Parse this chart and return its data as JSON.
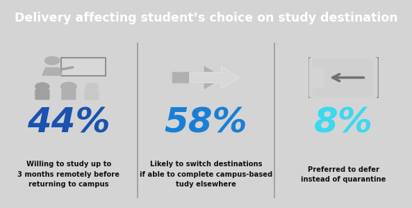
{
  "title": "Delivery affecting student’s choice on study destination",
  "title_bg": "#111111",
  "title_color": "#ffffff",
  "body_bg": "#d4d4d4",
  "divider_color": "#999999",
  "stats": [
    "44%",
    "58%",
    "8%"
  ],
  "stat_colors": [
    "#1a52b0",
    "#1a7fd4",
    "#3dd8f0"
  ],
  "descriptions": [
    "Willing to study up to\n3 months remotely before\nreturning to campus",
    "Likely to switch destinations\nif able to complete campus-based\ntudy elsewhere",
    "Preferred to defer\ninstead of quarantine"
  ],
  "desc_color": "#111111",
  "figsize": [
    5.93,
    2.99
  ],
  "dpi": 100
}
